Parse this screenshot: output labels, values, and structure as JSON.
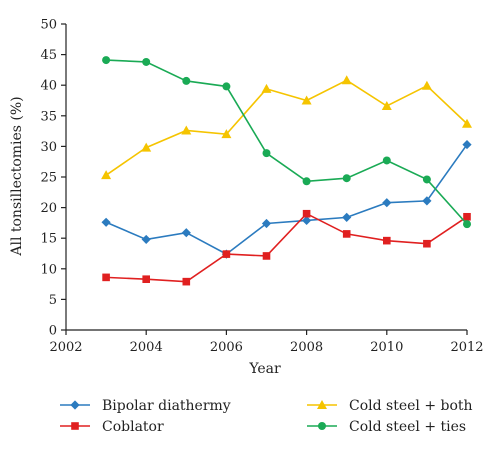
{
  "chart_data": {
    "type": "line",
    "title": "",
    "xlabel": "Year",
    "ylabel": "All tonsillectomies (%)",
    "xlim": [
      2002,
      2012
    ],
    "ylim": [
      0,
      50
    ],
    "x_ticks": [
      2002,
      2004,
      2006,
      2008,
      2010,
      2012
    ],
    "y_ticks": [
      0,
      5,
      10,
      15,
      20,
      25,
      30,
      35,
      40,
      45,
      50
    ],
    "grid": false,
    "legend_position": "bottom",
    "x": [
      2003,
      2004,
      2005,
      2006,
      2007,
      2008,
      2009,
      2010,
      2011,
      2012
    ],
    "series": [
      {
        "name": "Bipolar diathermy",
        "color": "#2b7bbf",
        "marker": "diamond",
        "values": [
          17.6,
          14.8,
          15.9,
          12.4,
          17.4,
          17.9,
          18.4,
          20.8,
          21.1,
          30.3
        ]
      },
      {
        "name": "Coblator",
        "color": "#e02020",
        "marker": "square",
        "values": [
          8.6,
          8.3,
          7.9,
          12.4,
          12.1,
          19.0,
          15.7,
          14.6,
          14.1,
          18.5
        ]
      },
      {
        "name": "Cold steel + both",
        "color": "#f5c400",
        "marker": "triangle",
        "values": [
          25.3,
          29.8,
          32.6,
          32.0,
          39.4,
          37.5,
          40.8,
          36.6,
          39.9,
          33.7
        ]
      },
      {
        "name": "Cold steel + ties",
        "color": "#1aaa55",
        "marker": "circle",
        "values": [
          44.1,
          43.8,
          40.7,
          39.8,
          28.9,
          24.3,
          24.8,
          27.7,
          24.6,
          17.3
        ]
      }
    ]
  }
}
